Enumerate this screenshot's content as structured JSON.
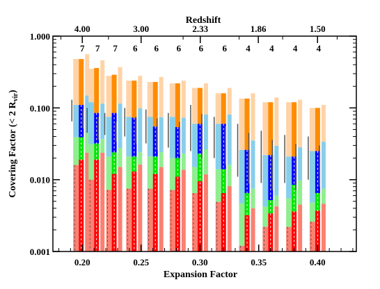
{
  "chart_data": {
    "type": "bar",
    "x_axis": {
      "label": "Expansion Factor",
      "range": [
        0.175,
        0.433
      ],
      "ticks": [
        0.2,
        0.25,
        0.3,
        0.35,
        0.4
      ],
      "tick_labels": [
        "0.20",
        "0.25",
        "0.30",
        "0.35",
        "0.40"
      ]
    },
    "top_axis": {
      "label": "Redshift",
      "tick_labels": [
        "4.00",
        "3.00",
        "2.33",
        "1.86",
        "1.50"
      ]
    },
    "y_axis": {
      "label_main": "Covering Factor (< 2 R",
      "label_sub": "vir",
      "label_end": ")",
      "scale": "log",
      "range": [
        0.001,
        1.0
      ],
      "ticks": [
        0.001,
        0.01,
        0.1,
        1.0
      ],
      "tick_labels": [
        "0.001",
        "0.010",
        "0.100",
        "1.000"
      ]
    },
    "series_colors": {
      "light_bar_pale": "#ffd3a6",
      "dark_bar_orange": "#ff8c00",
      "light_bar_sky": "#87ceeb",
      "dark_bar_blue": "#0000ff",
      "light_bar_lightgreen": "#90ee90",
      "dark_bar_green": "#00e600",
      "light_bar_salmon": "#fa8072",
      "dark_bar_red": "#ff0000",
      "error_bar": "#555555"
    },
    "groups": [
      {
        "a": 0.2,
        "count": "7",
        "orange": 0.48,
        "blue": 0.11,
        "green": 0.039,
        "red": 0.019,
        "pale": 0.48,
        "sky": 0.11,
        "lgreen": 0.039,
        "salmon": 0.016,
        "side": 0.56,
        "err": [
          0.065,
          0.13
        ]
      },
      {
        "a": 0.213,
        "count": "7",
        "orange": 0.36,
        "blue": 0.085,
        "green": 0.032,
        "red": 0.019,
        "pale": 0.35,
        "sky": 0.12,
        "lgreen": 0.031,
        "salmon": 0.01,
        "side": 0.46,
        "err": [
          0.045,
          0.1
        ]
      },
      {
        "a": 0.228,
        "count": "7",
        "orange": 0.29,
        "blue": 0.085,
        "green": 0.024,
        "red": 0.012,
        "pale": 0.28,
        "sky": 0.075,
        "lgreen": 0.021,
        "salmon": 0.0072,
        "side": 0.37,
        "err": [
          0.042,
          0.085
        ]
      },
      {
        "a": 0.245,
        "count": "6",
        "orange": 0.24,
        "blue": 0.073,
        "green": 0.021,
        "red": 0.013,
        "pale": 0.24,
        "sky": 0.075,
        "lgreen": 0.021,
        "salmon": 0.0075,
        "side": 0.28,
        "err": [
          0.04,
          0.1
        ]
      },
      {
        "a": 0.263,
        "count": "6",
        "orange": 0.23,
        "blue": 0.055,
        "green": 0.021,
        "red": 0.012,
        "pale": 0.23,
        "sky": 0.075,
        "lgreen": 0.021,
        "salmon": 0.0075,
        "side": 0.27,
        "err": [
          0.032,
          0.095
        ]
      },
      {
        "a": 0.282,
        "count": "6",
        "orange": 0.22,
        "blue": 0.054,
        "green": 0.02,
        "red": 0.011,
        "pale": 0.22,
        "sky": 0.075,
        "lgreen": 0.02,
        "salmon": 0.0072,
        "side": 0.24,
        "err": [
          0.028,
          0.085
        ]
      },
      {
        "a": 0.301,
        "count": "6",
        "orange": 0.19,
        "blue": 0.06,
        "green": 0.023,
        "red": 0.0095,
        "pale": 0.19,
        "sky": 0.06,
        "lgreen": 0.015,
        "salmon": 0.0065,
        "side": 0.22,
        "err": [
          0.025,
          0.11
        ]
      },
      {
        "a": 0.321,
        "count": "6",
        "orange": 0.16,
        "blue": 0.06,
        "green": 0.014,
        "red": 0.0065,
        "pale": 0.16,
        "sky": 0.06,
        "lgreen": 0.014,
        "salmon": 0.0049,
        "side": 0.19,
        "err": [
          0.02,
          0.075
        ]
      },
      {
        "a": 0.341,
        "count": "4",
        "orange": 0.135,
        "blue": 0.026,
        "green": 0.0065,
        "red": 0.0032,
        "pale": 0.135,
        "sky": 0.026,
        "lgreen": 0.0047,
        "salmon": 0.0012,
        "side": 0.16,
        "err": [
          0.011,
          0.06
        ]
      },
      {
        "a": 0.361,
        "count": "4",
        "orange": 0.12,
        "blue": 0.022,
        "green": 0.0052,
        "red": 0.0034,
        "pale": 0.12,
        "sky": 0.022,
        "lgreen": 0.0042,
        "salmon": 0.0022,
        "side": 0.14,
        "err": [
          0.009,
          0.048
        ]
      },
      {
        "a": 0.381,
        "count": "4",
        "orange": 0.12,
        "blue": 0.021,
        "green": 0.0085,
        "red": 0.0036,
        "pale": 0.12,
        "sky": 0.021,
        "lgreen": 0.0055,
        "salmon": 0.0022,
        "side": 0.13,
        "err": [
          0.009,
          0.042
        ]
      },
      {
        "a": 0.401,
        "count": "4",
        "orange": 0.1,
        "blue": 0.025,
        "green": 0.0065,
        "red": 0.0037,
        "pale": 0.1,
        "sky": 0.025,
        "lgreen": 0.0048,
        "salmon": 0.0026,
        "side": 0.11,
        "err": [
          0.01,
          0.04
        ]
      }
    ]
  }
}
